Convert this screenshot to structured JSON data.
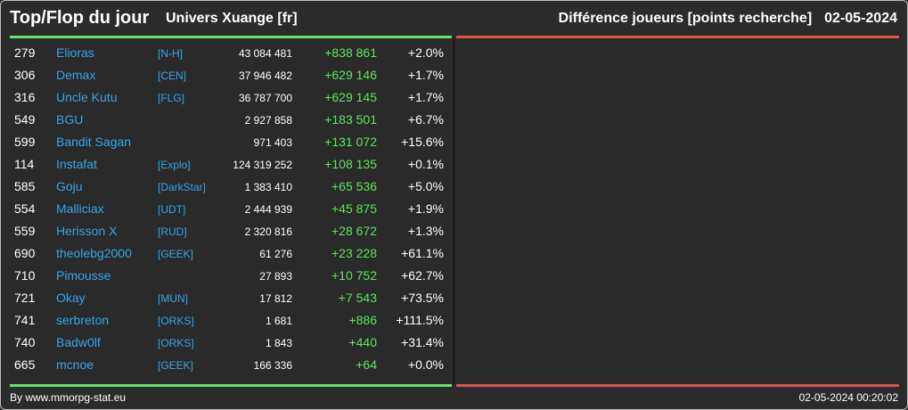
{
  "header": {
    "title": "Top/Flop du jour",
    "universe": "Univers Xuange [fr]",
    "subtitle": "Différence joueurs [points recherche]",
    "date": "02-05-2024"
  },
  "top": [
    {
      "rank": "279",
      "name": "Elioras",
      "alliance": "[N-H]",
      "points": "43 084 481",
      "diff": "+838 861",
      "pct": "+2.0%"
    },
    {
      "rank": "306",
      "name": "Demax",
      "alliance": "[CEN]",
      "points": "37 946 482",
      "diff": "+629 146",
      "pct": "+1.7%"
    },
    {
      "rank": "316",
      "name": "Uncle Kutu",
      "alliance": "[FLG]",
      "points": "36 787 700",
      "diff": "+629 145",
      "pct": "+1.7%"
    },
    {
      "rank": "549",
      "name": "BGU",
      "alliance": "",
      "points": "2 927 858",
      "diff": "+183 501",
      "pct": "+6.7%"
    },
    {
      "rank": "599",
      "name": "Bandit Sagan",
      "alliance": "",
      "points": "971 403",
      "diff": "+131 072",
      "pct": "+15.6%"
    },
    {
      "rank": "114",
      "name": "Instafat",
      "alliance": "[Explo]",
      "points": "124 319 252",
      "diff": "+108 135",
      "pct": "+0.1%"
    },
    {
      "rank": "585",
      "name": "Goju",
      "alliance": "[DarkStar]",
      "points": "1 383 410",
      "diff": "+65 536",
      "pct": "+5.0%"
    },
    {
      "rank": "554",
      "name": "Malliciax",
      "alliance": "[UDT]",
      "points": "2 444 939",
      "diff": "+45 875",
      "pct": "+1.9%"
    },
    {
      "rank": "559",
      "name": "Herisson X",
      "alliance": "[RUD]",
      "points": "2 320 816",
      "diff": "+28 672",
      "pct": "+1.3%"
    },
    {
      "rank": "690",
      "name": "theolebg2000",
      "alliance": "[GEEK]",
      "points": "61 276",
      "diff": "+23 228",
      "pct": "+61.1%"
    },
    {
      "rank": "710",
      "name": "Pimousse",
      "alliance": "",
      "points": "27 893",
      "diff": "+10 752",
      "pct": "+62.7%"
    },
    {
      "rank": "721",
      "name": "Okay",
      "alliance": "[MUN]",
      "points": "17 812",
      "diff": "+7 543",
      "pct": "+73.5%"
    },
    {
      "rank": "741",
      "name": "serbreton",
      "alliance": "[ORKS]",
      "points": "1 681",
      "diff": "+886",
      "pct": "+111.5%"
    },
    {
      "rank": "740",
      "name": "Badw0lf",
      "alliance": "[ORKS]",
      "points": "1 843",
      "diff": "+440",
      "pct": "+31.4%"
    },
    {
      "rank": "665",
      "name": "mcnoe",
      "alliance": "[GEEK]",
      "points": "166 336",
      "diff": "+64",
      "pct": "+0.0%"
    }
  ],
  "footer": {
    "credit": "By www.mmorpg-stat.eu",
    "timestamp": "02-05-2024 00:20:02"
  },
  "colors": {
    "top_accent": "#66e36a",
    "flop_accent": "#e0544c",
    "name_color": "#35a6e8"
  }
}
